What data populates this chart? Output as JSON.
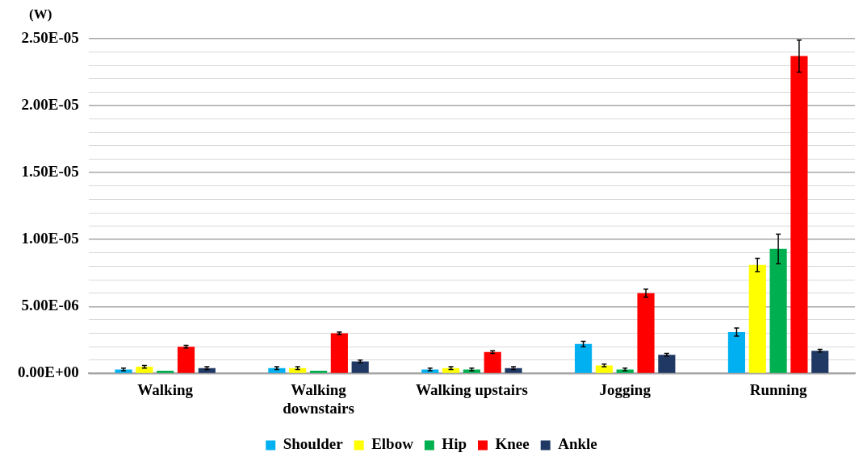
{
  "chart_data": {
    "type": "bar",
    "ylabel": "(W)",
    "categories": [
      "Walking",
      "Walking downstairs",
      "Walking upstairs",
      "Jogging",
      "Running"
    ],
    "series": [
      {
        "name": "Shoulder",
        "color": "#00b0f0",
        "values": [
          3e-07,
          4e-07,
          3e-07,
          2.2e-06,
          3.1e-06
        ],
        "errors": [
          1e-07,
          1e-07,
          1e-07,
          2e-07,
          3e-07
        ]
      },
      {
        "name": "Elbow",
        "color": "#ffff00",
        "values": [
          5e-07,
          4e-07,
          4e-07,
          6e-07,
          8.1e-06
        ],
        "errors": [
          1e-07,
          1e-07,
          1e-07,
          1e-07,
          5e-07
        ]
      },
      {
        "name": "Hip",
        "color": "#00b050",
        "values": [
          2e-07,
          2e-07,
          3e-07,
          3e-07,
          9.3e-06
        ],
        "errors": [
          null,
          null,
          1e-07,
          1e-07,
          1.1e-06
        ]
      },
      {
        "name": "Knee",
        "color": "#ff0000",
        "values": [
          2e-06,
          3e-06,
          1.6e-06,
          6e-06,
          2.37e-05
        ],
        "errors": [
          1e-07,
          1e-07,
          1e-07,
          3e-07,
          1.2e-06
        ]
      },
      {
        "name": "Ankle",
        "color": "#203864",
        "values": [
          4e-07,
          9e-07,
          4e-07,
          1.4e-06,
          1.7e-06
        ],
        "errors": [
          1e-07,
          1e-07,
          1e-07,
          1e-07,
          1e-07
        ]
      }
    ],
    "ylim": [
      0,
      2.5e-05
    ],
    "yticks": [
      {
        "value": 0,
        "label": "0.00E+00"
      },
      {
        "value": 1e-06,
        "label": null
      },
      {
        "value": 2e-06,
        "label": null
      },
      {
        "value": 3e-06,
        "label": null
      },
      {
        "value": 4e-06,
        "label": null
      },
      {
        "value": 5e-06,
        "label": "5.00E-06"
      },
      {
        "value": 6e-06,
        "label": null
      },
      {
        "value": 7e-06,
        "label": null
      },
      {
        "value": 8e-06,
        "label": null
      },
      {
        "value": 9e-06,
        "label": null
      },
      {
        "value": 1e-05,
        "label": "1.00E-05"
      },
      {
        "value": 1.1e-05,
        "label": null
      },
      {
        "value": 1.2e-05,
        "label": null
      },
      {
        "value": 1.3e-05,
        "label": null
      },
      {
        "value": 1.4e-05,
        "label": null
      },
      {
        "value": 1.5e-05,
        "label": "1.50E-05"
      },
      {
        "value": 1.6e-05,
        "label": null
      },
      {
        "value": 1.7e-05,
        "label": null
      },
      {
        "value": 1.8e-05,
        "label": null
      },
      {
        "value": 1.9e-05,
        "label": null
      },
      {
        "value": 2e-05,
        "label": "2.00E-05"
      },
      {
        "value": 2.1e-05,
        "label": null
      },
      {
        "value": 2.2e-05,
        "label": null
      },
      {
        "value": 2.3e-05,
        "label": null
      },
      {
        "value": 2.4e-05,
        "label": null
      },
      {
        "value": 2.5e-05,
        "label": "2.50E-05"
      }
    ],
    "grid": "y",
    "legend": "bottom"
  }
}
